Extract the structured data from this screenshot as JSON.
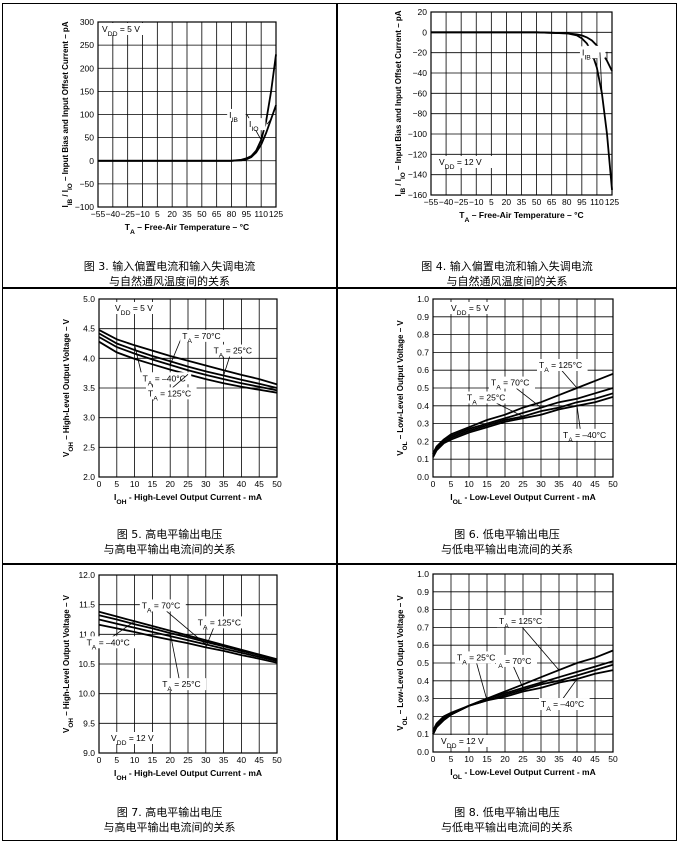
{
  "figures": [
    {
      "caption_line1": "图 3. 输入偏置电流和输入失调电流",
      "caption_line2": "与自然通风温度间的关系"
    },
    {
      "caption_line1": "图 4. 输入偏置电流和输入失调电流",
      "caption_line2": "与自然通风温度间的关系"
    },
    {
      "caption_line1": "图 5. 高电平输出电压",
      "caption_line2": "与高电平输出电流间的关系"
    },
    {
      "caption_line1": "图 6. 低电平输出电压",
      "caption_line2": "与低电平输出电流间的关系"
    },
    {
      "caption_line1": "图 7. 高电平输出电压",
      "caption_line2": "与高电平输出电流间的关系"
    },
    {
      "caption_line1": "图 8. 低电平输出电压",
      "caption_line2": "与低电平输出电流间的关系"
    }
  ],
  "chart_data": [
    {
      "type": "line",
      "xlabel": "T_A – Free-Air Temperature – °C",
      "ylabel": "I_IB / I_IO – Input Bias and Input Offset Current – pA",
      "xlim": [
        -55,
        125
      ],
      "ylim": [
        -100,
        300
      ],
      "xticks": [
        -55,
        -40,
        -25,
        -10,
        5,
        20,
        35,
        50,
        65,
        80,
        95,
        110,
        125
      ],
      "yticks": [
        -100,
        -50,
        0,
        50,
        100,
        150,
        200,
        250,
        300
      ],
      "grid": true,
      "annotations": [
        {
          "text": "V_DD = 5 V"
        }
      ],
      "series": [
        {
          "name": "I_IB",
          "x": [
            -55,
            -40,
            -25,
            -10,
            5,
            20,
            35,
            50,
            65,
            80,
            85,
            90,
            95,
            100,
            105,
            110,
            115,
            120,
            125
          ],
          "y": [
            0,
            0,
            0,
            0,
            0,
            0,
            0,
            0,
            0,
            0,
            1,
            2,
            5,
            10,
            22,
            45,
            85,
            150,
            230
          ]
        },
        {
          "name": "I_IO",
          "x": [
            -55,
            -40,
            -25,
            -10,
            5,
            20,
            35,
            50,
            65,
            80,
            85,
            90,
            95,
            100,
            105,
            110,
            115,
            120,
            125
          ],
          "y": [
            0,
            0,
            0,
            0,
            0,
            0,
            0,
            0,
            0,
            0,
            0.5,
            1,
            3,
            8,
            18,
            35,
            60,
            90,
            120
          ]
        }
      ]
    },
    {
      "type": "line",
      "xlabel": "T_A – Free-Air Temperature – °C",
      "ylabel": "I_IB / I_IO – Input Bias and Input Offset Current – pA",
      "xlim": [
        -55,
        125
      ],
      "ylim": [
        -160,
        20
      ],
      "xticks": [
        -55,
        -40,
        -25,
        -10,
        5,
        20,
        35,
        50,
        65,
        80,
        95,
        110,
        125
      ],
      "yticks": [
        -160,
        -140,
        -120,
        -100,
        -80,
        -60,
        -40,
        -20,
        0,
        20
      ],
      "grid": true,
      "annotations": [
        {
          "text": "V_DD = 12 V"
        }
      ],
      "series": [
        {
          "name": "I_IO",
          "x": [
            -55,
            -40,
            -25,
            -10,
            5,
            20,
            35,
            50,
            65,
            80,
            90,
            95,
            100,
            105,
            110,
            115,
            120,
            125
          ],
          "y": [
            0,
            0,
            0,
            0,
            0,
            0,
            0,
            0,
            -0.5,
            -1,
            -2,
            -3,
            -5,
            -8,
            -13,
            -20,
            -28,
            -38
          ]
        },
        {
          "name": "I_IB",
          "x": [
            -55,
            -40,
            -25,
            -10,
            5,
            20,
            35,
            50,
            65,
            80,
            90,
            95,
            100,
            105,
            110,
            115,
            120,
            125
          ],
          "y": [
            0,
            0,
            0,
            0,
            0,
            0,
            0,
            0,
            -0.5,
            -1,
            -3,
            -6,
            -11,
            -20,
            -35,
            -60,
            -100,
            -155
          ]
        }
      ]
    },
    {
      "type": "line",
      "xlabel": "I_OH - High-Level Output Current - mA",
      "ylabel": "V_OH – High-Level Output Voltage – V",
      "xlim": [
        0,
        50
      ],
      "ylim": [
        2.0,
        5.0
      ],
      "xticks": [
        0,
        5,
        10,
        15,
        20,
        25,
        30,
        35,
        40,
        45,
        50
      ],
      "yticks": [
        2.0,
        2.5,
        3.0,
        3.5,
        4.0,
        4.5,
        5.0
      ],
      "grid": true,
      "annotations": [
        {
          "text": "V_DD = 5 V"
        }
      ],
      "series": [
        {
          "name": "T_A = –40°C",
          "x": [
            0,
            5,
            10,
            15,
            20,
            25,
            30,
            35,
            40,
            45,
            50
          ],
          "y": [
            4.48,
            4.32,
            4.22,
            4.13,
            4.04,
            3.96,
            3.88,
            3.8,
            3.72,
            3.65,
            3.56
          ]
        },
        {
          "name": "T_A = 25°C",
          "x": [
            0,
            5,
            10,
            15,
            20,
            25,
            30,
            35,
            40,
            45,
            50
          ],
          "y": [
            4.42,
            4.25,
            4.14,
            4.04,
            3.95,
            3.86,
            3.78,
            3.71,
            3.64,
            3.57,
            3.5
          ]
        },
        {
          "name": "T_A = 70°C",
          "x": [
            0,
            5,
            10,
            15,
            20,
            25,
            30,
            35,
            40,
            45,
            50
          ],
          "y": [
            4.36,
            4.19,
            4.08,
            3.98,
            3.89,
            3.8,
            3.72,
            3.65,
            3.58,
            3.52,
            3.46
          ]
        },
        {
          "name": "T_A = 125°C",
          "x": [
            0,
            5,
            10,
            15,
            20,
            25,
            30,
            35,
            40,
            45,
            50
          ],
          "y": [
            4.28,
            4.1,
            3.99,
            3.9,
            3.81,
            3.73,
            3.65,
            3.58,
            3.52,
            3.47,
            3.42
          ]
        }
      ]
    },
    {
      "type": "line",
      "xlabel": "I_OL - Low-Level Output Current - mA",
      "ylabel": "V_OL – Low-Level Output Voltage – V",
      "xlim": [
        0,
        50
      ],
      "ylim": [
        0,
        1.0
      ],
      "xticks": [
        0,
        5,
        10,
        15,
        20,
        25,
        30,
        35,
        40,
        45,
        50
      ],
      "yticks": [
        0,
        0.1,
        0.2,
        0.3,
        0.4,
        0.5,
        0.6,
        0.7,
        0.8,
        0.9,
        1.0
      ],
      "grid": true,
      "annotations": [
        {
          "text": "V_DD = 5 V"
        }
      ],
      "series": [
        {
          "name": "T_A = 125°C",
          "x": [
            0,
            1,
            3,
            5,
            10,
            15,
            20,
            25,
            30,
            35,
            40,
            45,
            50
          ],
          "y": [
            0.13,
            0.17,
            0.21,
            0.24,
            0.28,
            0.32,
            0.35,
            0.39,
            0.42,
            0.46,
            0.5,
            0.54,
            0.58
          ]
        },
        {
          "name": "T_A = 70°C",
          "x": [
            0,
            1,
            3,
            5,
            10,
            15,
            20,
            25,
            30,
            35,
            40,
            45,
            50
          ],
          "y": [
            0.13,
            0.17,
            0.21,
            0.23,
            0.27,
            0.3,
            0.33,
            0.36,
            0.39,
            0.42,
            0.44,
            0.47,
            0.5
          ]
        },
        {
          "name": "T_A = 25°C",
          "x": [
            0,
            1,
            3,
            5,
            10,
            15,
            20,
            25,
            30,
            35,
            40,
            45,
            50
          ],
          "y": [
            0.12,
            0.16,
            0.2,
            0.22,
            0.26,
            0.29,
            0.32,
            0.34,
            0.37,
            0.39,
            0.42,
            0.44,
            0.47
          ]
        },
        {
          "name": "T_A = –40°C",
          "x": [
            0,
            1,
            3,
            5,
            10,
            15,
            20,
            25,
            30,
            35,
            40,
            45,
            50
          ],
          "y": [
            0.11,
            0.15,
            0.19,
            0.21,
            0.25,
            0.28,
            0.31,
            0.33,
            0.35,
            0.38,
            0.4,
            0.42,
            0.45
          ]
        }
      ]
    },
    {
      "type": "line",
      "xlabel": "I_OH - High-Level Output Current - mA",
      "ylabel": "V_OH – High-Level Output Voltage – V",
      "xlim": [
        0,
        50
      ],
      "ylim": [
        9.0,
        12.0
      ],
      "xticks": [
        0,
        5,
        10,
        15,
        20,
        25,
        30,
        35,
        40,
        45,
        50
      ],
      "yticks": [
        9.0,
        9.5,
        10.0,
        10.5,
        11.0,
        11.5,
        12.0
      ],
      "grid": true,
      "annotations": [
        {
          "text": "V_DD = 12 V"
        }
      ],
      "series": [
        {
          "name": "T_A = –40°C",
          "x": [
            0,
            5,
            10,
            15,
            20,
            25,
            30,
            35,
            40,
            45,
            50
          ],
          "y": [
            11.38,
            11.3,
            11.22,
            11.14,
            11.06,
            10.98,
            10.9,
            10.82,
            10.74,
            10.66,
            10.58
          ]
        },
        {
          "name": "T_A = 25°C",
          "x": [
            0,
            5,
            10,
            15,
            20,
            25,
            30,
            35,
            40,
            45,
            50
          ],
          "y": [
            11.32,
            11.25,
            11.17,
            11.1,
            11.02,
            10.95,
            10.87,
            10.8,
            10.72,
            10.65,
            10.57
          ]
        },
        {
          "name": "T_A = 70°C",
          "x": [
            0,
            5,
            10,
            15,
            20,
            25,
            30,
            35,
            40,
            45,
            50
          ],
          "y": [
            11.25,
            11.18,
            11.11,
            11.04,
            10.97,
            10.9,
            10.83,
            10.76,
            10.69,
            10.62,
            10.55
          ]
        },
        {
          "name": "T_A = 125°C",
          "x": [
            0,
            5,
            10,
            15,
            20,
            25,
            30,
            35,
            40,
            45,
            50
          ],
          "y": [
            11.16,
            11.1,
            11.04,
            10.97,
            10.91,
            10.85,
            10.78,
            10.72,
            10.65,
            10.59,
            10.52
          ]
        }
      ]
    },
    {
      "type": "line",
      "xlabel": "I_OL - Low-Level Output Current - mA",
      "ylabel": "V_OL – Low-Level Output Voltage – V",
      "xlim": [
        0,
        50
      ],
      "ylim": [
        0,
        1.0
      ],
      "xticks": [
        0,
        5,
        10,
        15,
        20,
        25,
        30,
        35,
        40,
        45,
        50
      ],
      "yticks": [
        0,
        0.1,
        0.2,
        0.3,
        0.4,
        0.5,
        0.6,
        0.7,
        0.8,
        0.9,
        1.0
      ],
      "grid": true,
      "annotations": [
        {
          "text": "V_DD = 12 V"
        }
      ],
      "series": [
        {
          "name": "T_A = 125°C",
          "x": [
            0,
            1,
            3,
            5,
            10,
            15,
            20,
            25,
            30,
            35,
            40,
            45,
            50
          ],
          "y": [
            0.1,
            0.14,
            0.18,
            0.21,
            0.26,
            0.3,
            0.34,
            0.38,
            0.42,
            0.46,
            0.5,
            0.53,
            0.57
          ]
        },
        {
          "name": "T_A = 70°C",
          "x": [
            0,
            1,
            3,
            5,
            10,
            15,
            20,
            25,
            30,
            35,
            40,
            45,
            50
          ],
          "y": [
            0.1,
            0.14,
            0.18,
            0.21,
            0.26,
            0.3,
            0.33,
            0.36,
            0.39,
            0.42,
            0.45,
            0.48,
            0.51
          ]
        },
        {
          "name": "T_A = 25°C",
          "x": [
            0,
            1,
            3,
            5,
            10,
            15,
            20,
            25,
            30,
            35,
            40,
            45,
            50
          ],
          "y": [
            0.11,
            0.15,
            0.19,
            0.21,
            0.26,
            0.29,
            0.32,
            0.35,
            0.38,
            0.4,
            0.43,
            0.46,
            0.49
          ]
        },
        {
          "name": "T_A = –40°C",
          "x": [
            0,
            1,
            3,
            5,
            10,
            15,
            20,
            25,
            30,
            35,
            40,
            45,
            50
          ],
          "y": [
            0.12,
            0.16,
            0.2,
            0.22,
            0.26,
            0.29,
            0.31,
            0.34,
            0.36,
            0.39,
            0.41,
            0.44,
            0.46
          ]
        }
      ]
    }
  ]
}
